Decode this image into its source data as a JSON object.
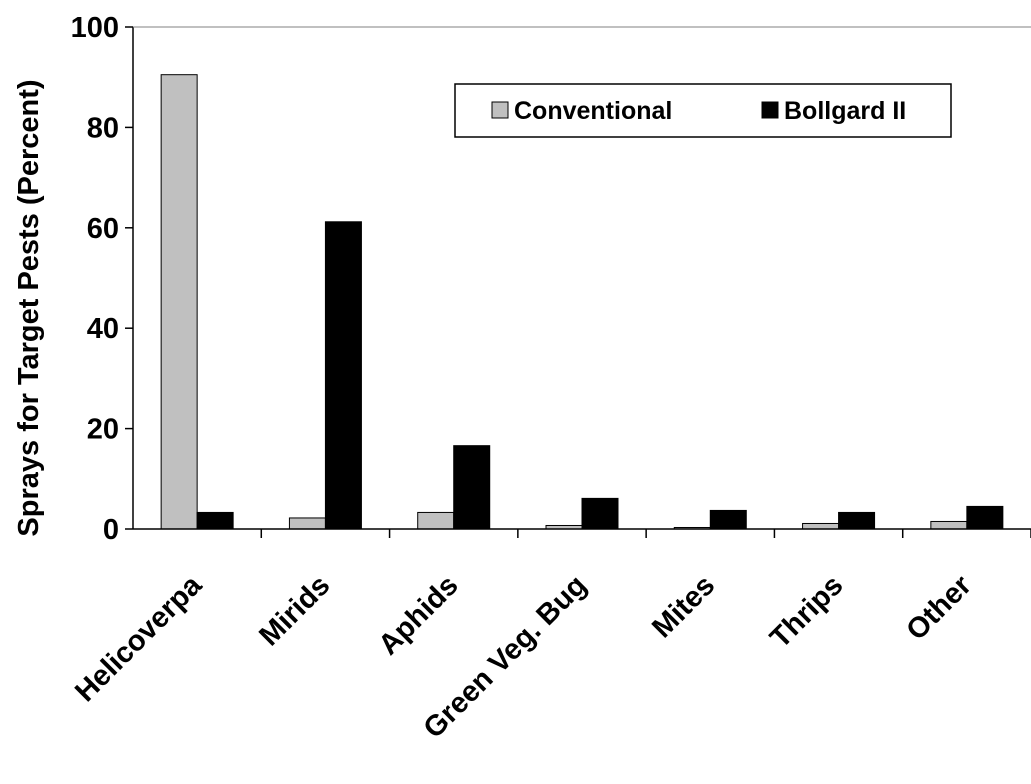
{
  "chart_data": {
    "type": "bar",
    "title": "",
    "xlabel": "",
    "ylabel": "Sprays for Target Pests (Percent)",
    "ylim": [
      0,
      100
    ],
    "yticks": [
      0,
      20,
      40,
      60,
      80,
      100
    ],
    "categories": [
      "Helicoverpa",
      "Mirids",
      "Aphids",
      "Green Veg. Bug",
      "Mites",
      "Thrips",
      "Other"
    ],
    "series": [
      {
        "name": "Conventional",
        "color": "#c0c0c0",
        "values": [
          90.5,
          2.2,
          3.3,
          0.7,
          0.3,
          1.1,
          1.5
        ]
      },
      {
        "name": "Bollgard II",
        "color": "#000000",
        "values": [
          3.3,
          61.2,
          16.6,
          6.1,
          3.7,
          3.3,
          4.5
        ]
      }
    ],
    "grid": false,
    "legend": {
      "position": "top-right"
    }
  }
}
